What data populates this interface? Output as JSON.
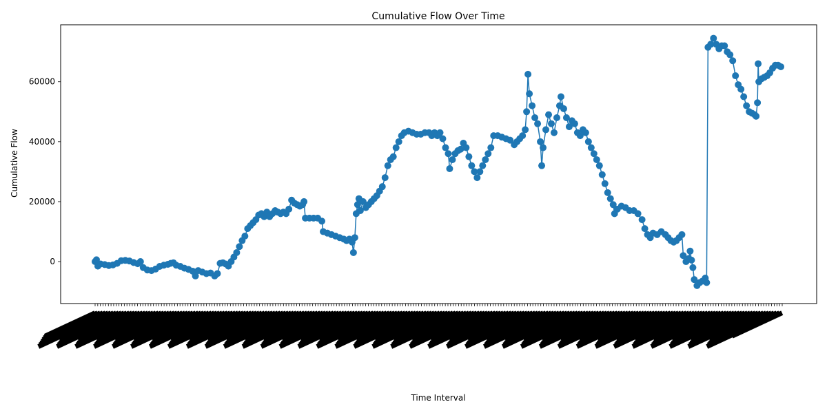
{
  "chart_data": {
    "type": "line",
    "title": "Cumulative Flow Over Time",
    "xlabel": "Time Interval",
    "ylabel": "Cumulative Flow",
    "ylim": [
      -14000,
      79000
    ],
    "y_ticks": [
      0,
      20000,
      40000,
      60000
    ],
    "y_tick_labels": [
      "0",
      "20000",
      "40000",
      "60000"
    ],
    "grid": false,
    "legend": "none",
    "markers": "circle",
    "x_tick_labels_note": "dense overlapping rotated labels (illegible)",
    "series": [
      {
        "color": "#1f77b4",
        "x_range": [
          0,
          1000
        ],
        "points": [
          [
            0,
            0
          ],
          [
            2,
            600
          ],
          [
            4,
            -1500
          ],
          [
            8,
            -800
          ],
          [
            14,
            -1000
          ],
          [
            20,
            -1300
          ],
          [
            26,
            -1100
          ],
          [
            32,
            -600
          ],
          [
            38,
            300
          ],
          [
            44,
            400
          ],
          [
            50,
            200
          ],
          [
            56,
            -300
          ],
          [
            62,
            -700
          ],
          [
            66,
            0
          ],
          [
            70,
            -2000
          ],
          [
            76,
            -2800
          ],
          [
            82,
            -3000
          ],
          [
            88,
            -2500
          ],
          [
            94,
            -1600
          ],
          [
            100,
            -1200
          ],
          [
            106,
            -900
          ],
          [
            110,
            -600
          ],
          [
            114,
            -400
          ],
          [
            118,
            -1200
          ],
          [
            124,
            -1600
          ],
          [
            130,
            -2200
          ],
          [
            136,
            -2600
          ],
          [
            142,
            -3200
          ],
          [
            146,
            -4800
          ],
          [
            150,
            -3000
          ],
          [
            156,
            -3500
          ],
          [
            162,
            -4000
          ],
          [
            168,
            -3800
          ],
          [
            174,
            -4800
          ],
          [
            178,
            -4000
          ],
          [
            182,
            -600
          ],
          [
            186,
            -400
          ],
          [
            190,
            -800
          ],
          [
            194,
            -1500
          ],
          [
            198,
            0
          ],
          [
            202,
            1500
          ],
          [
            206,
            3000
          ],
          [
            210,
            5000
          ],
          [
            214,
            7000
          ],
          [
            218,
            8500
          ],
          [
            222,
            11000
          ],
          [
            226,
            12000
          ],
          [
            230,
            13000
          ],
          [
            234,
            14000
          ],
          [
            238,
            15500
          ],
          [
            242,
            16000
          ],
          [
            246,
            15000
          ],
          [
            250,
            16500
          ],
          [
            254,
            15000
          ],
          [
            258,
            16000
          ],
          [
            262,
            17000
          ],
          [
            266,
            16500
          ],
          [
            270,
            16000
          ],
          [
            274,
            16500
          ],
          [
            278,
            16000
          ],
          [
            282,
            17500
          ],
          [
            286,
            20500
          ],
          [
            290,
            19500
          ],
          [
            294,
            19000
          ],
          [
            298,
            18500
          ],
          [
            302,
            19000
          ],
          [
            304,
            20000
          ],
          [
            306,
            14500
          ],
          [
            312,
            14500
          ],
          [
            318,
            14500
          ],
          [
            324,
            14500
          ],
          [
            330,
            13500
          ],
          [
            332,
            10000
          ],
          [
            338,
            9500
          ],
          [
            344,
            9000
          ],
          [
            350,
            8500
          ],
          [
            356,
            8000
          ],
          [
            362,
            7500
          ],
          [
            366,
            7000
          ],
          [
            370,
            7500
          ],
          [
            374,
            6500
          ],
          [
            376,
            3000
          ],
          [
            378,
            8000
          ],
          [
            380,
            16000
          ],
          [
            382,
            19000
          ],
          [
            384,
            21000
          ],
          [
            386,
            17000
          ],
          [
            390,
            20000
          ],
          [
            394,
            18000
          ],
          [
            398,
            19000
          ],
          [
            402,
            20000
          ],
          [
            406,
            21000
          ],
          [
            410,
            22000
          ],
          [
            414,
            23500
          ],
          [
            418,
            25000
          ],
          [
            422,
            28000
          ],
          [
            426,
            32000
          ],
          [
            430,
            34000
          ],
          [
            434,
            35000
          ],
          [
            438,
            38000
          ],
          [
            442,
            40000
          ],
          [
            446,
            42000
          ],
          [
            450,
            43000
          ],
          [
            456,
            43500
          ],
          [
            462,
            43000
          ],
          [
            468,
            42500
          ],
          [
            474,
            42500
          ],
          [
            480,
            43000
          ],
          [
            486,
            43000
          ],
          [
            490,
            42000
          ],
          [
            494,
            43000
          ],
          [
            498,
            42000
          ],
          [
            502,
            43000
          ],
          [
            506,
            41000
          ],
          [
            510,
            38000
          ],
          [
            514,
            36000
          ],
          [
            516,
            31000
          ],
          [
            520,
            34000
          ],
          [
            524,
            36000
          ],
          [
            528,
            37000
          ],
          [
            532,
            37500
          ],
          [
            536,
            39500
          ],
          [
            540,
            38000
          ],
          [
            544,
            35000
          ],
          [
            548,
            32000
          ],
          [
            552,
            30000
          ],
          [
            556,
            28000
          ],
          [
            560,
            30000
          ],
          [
            564,
            32000
          ],
          [
            568,
            34000
          ],
          [
            572,
            36000
          ],
          [
            576,
            38000
          ],
          [
            580,
            42000
          ],
          [
            586,
            42000
          ],
          [
            592,
            41500
          ],
          [
            598,
            41000
          ],
          [
            604,
            40500
          ],
          [
            610,
            39000
          ],
          [
            614,
            40000
          ],
          [
            618,
            41000
          ],
          [
            622,
            42000
          ],
          [
            626,
            44000
          ],
          [
            628,
            50000
          ],
          [
            630,
            62500
          ],
          [
            632,
            56000
          ],
          [
            636,
            52000
          ],
          [
            640,
            48000
          ],
          [
            644,
            46000
          ],
          [
            648,
            40000
          ],
          [
            650,
            32000
          ],
          [
            652,
            38000
          ],
          [
            656,
            44000
          ],
          [
            660,
            49000
          ],
          [
            664,
            46000
          ],
          [
            668,
            43000
          ],
          [
            672,
            48000
          ],
          [
            676,
            52000
          ],
          [
            678,
            55000
          ],
          [
            682,
            51000
          ],
          [
            686,
            48000
          ],
          [
            690,
            45000
          ],
          [
            694,
            47000
          ],
          [
            698,
            46000
          ],
          [
            702,
            43000
          ],
          [
            706,
            42000
          ],
          [
            710,
            44000
          ],
          [
            714,
            43000
          ],
          [
            718,
            40000
          ],
          [
            722,
            38000
          ],
          [
            726,
            36000
          ],
          [
            730,
            34000
          ],
          [
            734,
            32000
          ],
          [
            738,
            29000
          ],
          [
            742,
            26000
          ],
          [
            746,
            23000
          ],
          [
            750,
            21000
          ],
          [
            754,
            19000
          ],
          [
            756,
            16000
          ],
          [
            760,
            17500
          ],
          [
            766,
            18500
          ],
          [
            772,
            18000
          ],
          [
            778,
            17000
          ],
          [
            784,
            17000
          ],
          [
            790,
            16000
          ],
          [
            796,
            14000
          ],
          [
            800,
            11000
          ],
          [
            804,
            9000
          ],
          [
            808,
            8000
          ],
          [
            812,
            9500
          ],
          [
            818,
            9000
          ],
          [
            824,
            10000
          ],
          [
            830,
            9000
          ],
          [
            834,
            8000
          ],
          [
            838,
            7000
          ],
          [
            842,
            6500
          ],
          [
            846,
            7000
          ],
          [
            850,
            8000
          ],
          [
            854,
            9000
          ],
          [
            856,
            2000
          ],
          [
            860,
            0
          ],
          [
            864,
            1000
          ],
          [
            866,
            3500
          ],
          [
            868,
            500
          ],
          [
            870,
            -2000
          ],
          [
            872,
            -6000
          ],
          [
            876,
            -8000
          ],
          [
            880,
            -7000
          ],
          [
            884,
            -6500
          ],
          [
            888,
            -5500
          ],
          [
            890,
            -7000
          ],
          [
            892,
            71500
          ],
          [
            896,
            72500
          ],
          [
            900,
            74500
          ],
          [
            904,
            72500
          ],
          [
            908,
            71000
          ],
          [
            912,
            72000
          ],
          [
            916,
            72000
          ],
          [
            920,
            70000
          ],
          [
            924,
            69000
          ],
          [
            928,
            67000
          ],
          [
            932,
            62000
          ],
          [
            936,
            59000
          ],
          [
            940,
            57500
          ],
          [
            944,
            55000
          ],
          [
            948,
            52000
          ],
          [
            952,
            50000
          ],
          [
            956,
            49500
          ],
          [
            960,
            49000
          ],
          [
            962,
            48500
          ],
          [
            964,
            53000
          ],
          [
            965,
            66000
          ],
          [
            966,
            60000
          ],
          [
            970,
            61000
          ],
          [
            974,
            61500
          ],
          [
            978,
            62000
          ],
          [
            982,
            63000
          ],
          [
            986,
            64500
          ],
          [
            990,
            65500
          ],
          [
            994,
            65500
          ],
          [
            998,
            65000
          ]
        ]
      }
    ]
  }
}
